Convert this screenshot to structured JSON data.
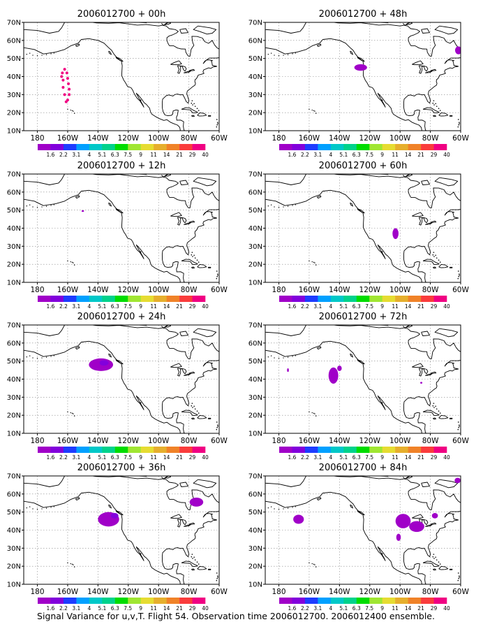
{
  "caption": "Signal Variance for u,v,T. Flight 54. Observation time 2006012700. 2006012400 ensemble.",
  "colorbar": {
    "labels": [
      "1.6",
      "2.2",
      "3.1",
      "4",
      "5.1",
      "6.3",
      "7.5",
      "9",
      "11",
      "14",
      "21",
      "29",
      "40"
    ],
    "colors": [
      "#a000c8",
      "#8200dc",
      "#1e3cff",
      "#00a0ff",
      "#00c8c8",
      "#00d28c",
      "#00dc00",
      "#a0e632",
      "#e6dc32",
      "#e6af2d",
      "#f08228",
      "#fa3c3c",
      "#f00082"
    ]
  },
  "map_axes": {
    "lon_ticks": [
      "180",
      "160W",
      "140W",
      "120W",
      "100W",
      "80W",
      "60W"
    ],
    "lat_ticks": [
      "70N",
      "60N",
      "50N",
      "40N",
      "30N",
      "20N",
      "10N"
    ]
  },
  "panels": [
    {
      "title": "2006012700 + 00h"
    },
    {
      "title": "2006012700 + 48h"
    },
    {
      "title": "2006012700 + 12h"
    },
    {
      "title": "2006012700 + 60h"
    },
    {
      "title": "2006012700 + 24h"
    },
    {
      "title": "2006012700 + 72h"
    },
    {
      "title": "2006012700 + 36h"
    },
    {
      "title": "2006012700 + 84h"
    }
  ],
  "chart_data": {
    "type": "heatmap",
    "panels": [
      {
        "title": "2006012700 + 00h",
        "lead_hours": 0,
        "features": [
          {
            "kind": "track",
            "color": "#f00082",
            "points": [
              [
                -163,
                38
              ],
              [
                -164,
                40
              ],
              [
                -163.5,
                42
              ],
              [
                -162,
                44
              ],
              [
                -160.5,
                42
              ],
              [
                -160,
                39
              ],
              [
                -159.5,
                36
              ],
              [
                -159,
                33
              ],
              [
                -159,
                30
              ],
              [
                -160,
                27
              ],
              [
                -161,
                26
              ],
              [
                -162,
                30
              ],
              [
                -163,
                34
              ]
            ]
          }
        ]
      },
      {
        "title": "2006012700 + 48h",
        "lead_hours": 48,
        "features": [
          {
            "kind": "blob",
            "color": "#a000c8",
            "lon": -126,
            "lat": 45,
            "rx": 4.2,
            "ry": 1.8
          },
          {
            "kind": "blob",
            "color": "#a000c8",
            "lon": -61.5,
            "lat": 54.5,
            "rx": 2.2,
            "ry": 2.2
          }
        ]
      },
      {
        "title": "2006012700 + 12h",
        "lead_hours": 12,
        "features": [
          {
            "kind": "blob",
            "color": "#a000c8",
            "lon": -150,
            "lat": 49.5,
            "rx": 0.8,
            "ry": 0.4
          }
        ]
      },
      {
        "title": "2006012700 + 60h",
        "lead_hours": 60,
        "features": [
          {
            "kind": "blob",
            "color": "#a000c8",
            "lon": -103,
            "lat": 37,
            "rx": 2,
            "ry": 3
          }
        ]
      },
      {
        "title": "2006012700 + 24h",
        "lead_hours": 24,
        "features": [
          {
            "kind": "blob",
            "color": "#a000c8",
            "lon": -138,
            "lat": 48,
            "rx": 8,
            "ry": 3.5
          },
          {
            "kind": "blob",
            "color": "#8200dc",
            "lon": -136,
            "lat": 49,
            "rx": 3,
            "ry": 1.5
          }
        ]
      },
      {
        "title": "2006012700 + 72h",
        "lead_hours": 72,
        "features": [
          {
            "kind": "blob",
            "color": "#a000c8",
            "lon": -144,
            "lat": 42,
            "rx": 3.2,
            "ry": 4.5
          },
          {
            "kind": "blob",
            "color": "#a000c8",
            "lon": -140,
            "lat": 46,
            "rx": 1.5,
            "ry": 1.5
          },
          {
            "kind": "blob",
            "color": "#a000c8",
            "lon": -174,
            "lat": 45,
            "rx": 0.6,
            "ry": 1
          },
          {
            "kind": "blob",
            "color": "#a000c8",
            "lon": -86,
            "lat": 38,
            "rx": 0.7,
            "ry": 0.5
          }
        ]
      },
      {
        "title": "2006012700 + 36h",
        "lead_hours": 36,
        "features": [
          {
            "kind": "blob",
            "color": "#a000c8",
            "lon": -133,
            "lat": 46,
            "rx": 7,
            "ry": 4
          },
          {
            "kind": "blob",
            "color": "#8200dc",
            "lon": -129,
            "lat": 48,
            "rx": 2.5,
            "ry": 1.5
          },
          {
            "kind": "blob",
            "color": "#a000c8",
            "lon": -75,
            "lat": 55.5,
            "rx": 4.5,
            "ry": 2.5
          }
        ]
      },
      {
        "title": "2006012700 + 84h",
        "lead_hours": 84,
        "features": [
          {
            "kind": "blob",
            "color": "#a000c8",
            "lon": -167,
            "lat": 46,
            "rx": 3.5,
            "ry": 2.5
          },
          {
            "kind": "blob",
            "color": "#a000c8",
            "lon": -98,
            "lat": 45,
            "rx": 5,
            "ry": 4
          },
          {
            "kind": "blob",
            "color": "#a000c8",
            "lon": -89,
            "lat": 42,
            "rx": 5,
            "ry": 3
          },
          {
            "kind": "blob",
            "color": "#a000c8",
            "lon": -101,
            "lat": 36,
            "rx": 1.5,
            "ry": 2
          },
          {
            "kind": "blob",
            "color": "#a000c8",
            "lon": -77,
            "lat": 48,
            "rx": 2,
            "ry": 1.5
          },
          {
            "kind": "blob",
            "color": "#a000c8",
            "lon": -62,
            "lat": 67.5,
            "rx": 2,
            "ry": 1.5
          }
        ]
      }
    ],
    "xlim_deg": [
      -189,
      -60
    ],
    "ylim_deg": [
      10,
      70
    ],
    "grid": true
  }
}
